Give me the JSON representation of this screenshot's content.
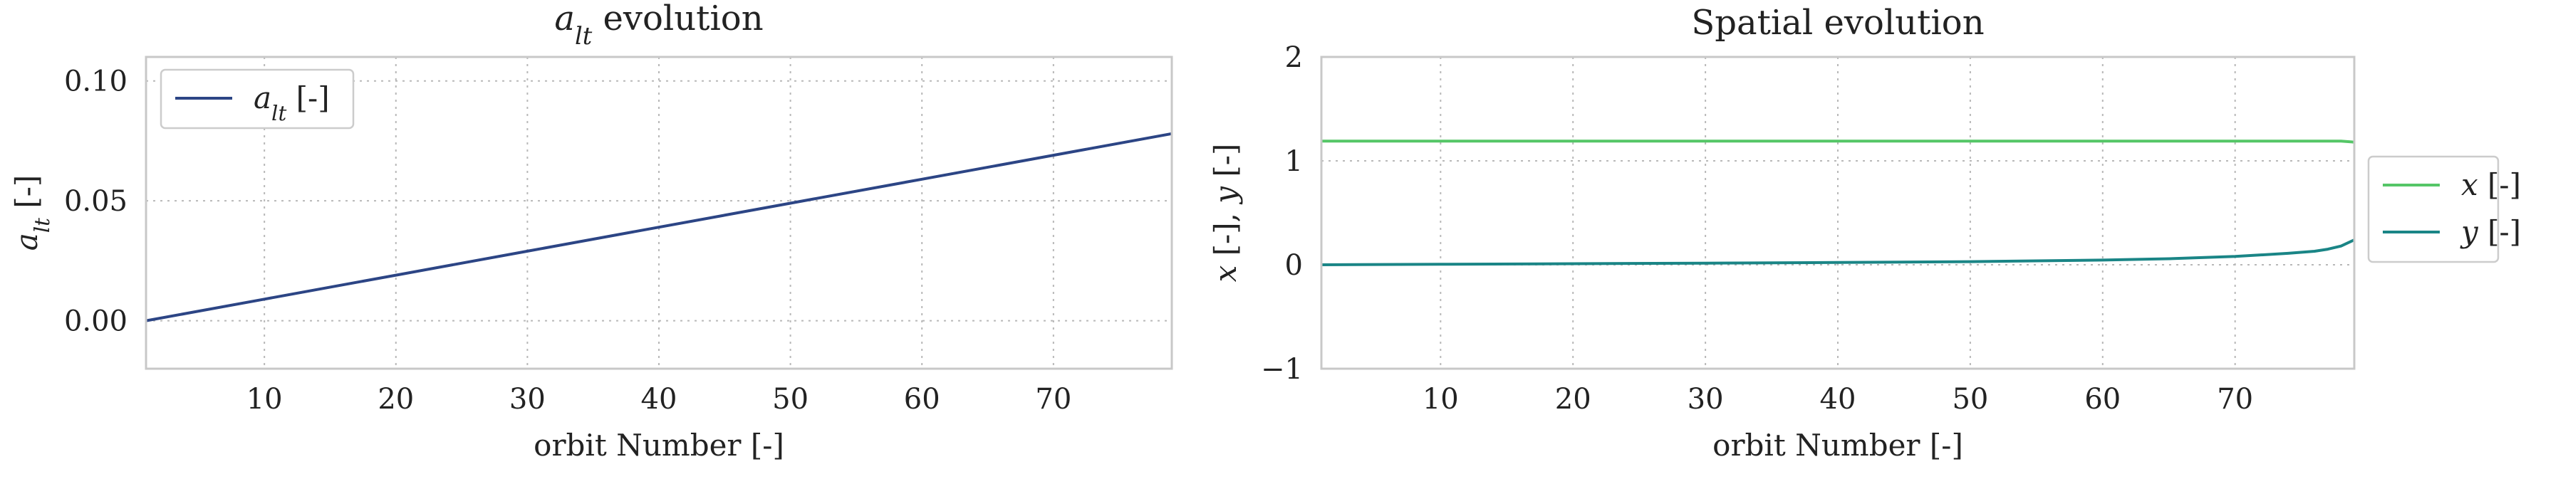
{
  "chart_data": [
    {
      "type": "line",
      "title": "a_lt evolution",
      "title_parts": [
        {
          "t": "a",
          "italic": true
        },
        {
          "t": "lt",
          "italic": true,
          "sub": true
        },
        {
          "t": " evolution"
        }
      ],
      "xlabel": "orbit Number [-]",
      "ylabel": "a_lt [-]",
      "ylabel_parts": [
        {
          "t": "a",
          "italic": true
        },
        {
          "t": "lt",
          "italic": true,
          "sub": true
        },
        {
          "t": " [-]"
        }
      ],
      "xlim": [
        1,
        79
      ],
      "ylim": [
        -0.02,
        0.11
      ],
      "xticks": [
        10,
        20,
        30,
        40,
        50,
        60,
        70
      ],
      "yticks": [
        0.0,
        0.05,
        0.1
      ],
      "ytick_labels": [
        "0.00",
        "0.05",
        "0.10"
      ],
      "grid": true,
      "legend": "upper-left",
      "series": [
        {
          "name": "a_lt [-]",
          "label_parts": [
            {
              "t": "a",
              "italic": true
            },
            {
              "t": "lt",
              "italic": true,
              "sub": true
            },
            {
              "t": " [-]"
            }
          ],
          "color": "#2c4585",
          "x": [
            1,
            10,
            20,
            30,
            40,
            50,
            60,
            70,
            79
          ],
          "y": [
            0.0,
            0.009,
            0.019,
            0.029,
            0.039,
            0.049,
            0.059,
            0.069,
            0.078
          ]
        }
      ]
    },
    {
      "type": "line",
      "title": "Spatial evolution",
      "xlabel": "orbit Number [-]",
      "ylabel": "x [-], y [-]",
      "ylabel_parts": [
        {
          "t": "x",
          "italic": true
        },
        {
          "t": " [-], "
        },
        {
          "t": "y",
          "italic": true
        },
        {
          "t": " [-]"
        }
      ],
      "xlim": [
        1,
        79
      ],
      "ylim": [
        -1,
        2
      ],
      "xticks": [
        10,
        20,
        30,
        40,
        50,
        60,
        70
      ],
      "yticks": [
        -1,
        0,
        1,
        2
      ],
      "ytick_labels": [
        "−1",
        "0",
        "1",
        "2"
      ],
      "grid": true,
      "legend": "outside-right",
      "series": [
        {
          "name": "x [-]",
          "label_parts": [
            {
              "t": "x",
              "italic": true
            },
            {
              "t": " [-]"
            }
          ],
          "color": "#55c667",
          "x": [
            1,
            10,
            20,
            30,
            40,
            50,
            60,
            70,
            76,
            78,
            79
          ],
          "y": [
            1.19,
            1.19,
            1.19,
            1.19,
            1.19,
            1.19,
            1.19,
            1.19,
            1.19,
            1.19,
            1.18
          ]
        },
        {
          "name": "y [-]",
          "label_parts": [
            {
              "t": "y",
              "italic": true
            },
            {
              "t": " [-]"
            }
          ],
          "color": "#1a8586",
          "x": [
            1,
            10,
            20,
            30,
            40,
            50,
            60,
            65,
            70,
            74,
            76,
            77,
            78,
            79
          ],
          "y": [
            0.0,
            0.005,
            0.01,
            0.016,
            0.022,
            0.03,
            0.045,
            0.058,
            0.08,
            0.11,
            0.13,
            0.15,
            0.18,
            0.24
          ]
        }
      ]
    }
  ]
}
